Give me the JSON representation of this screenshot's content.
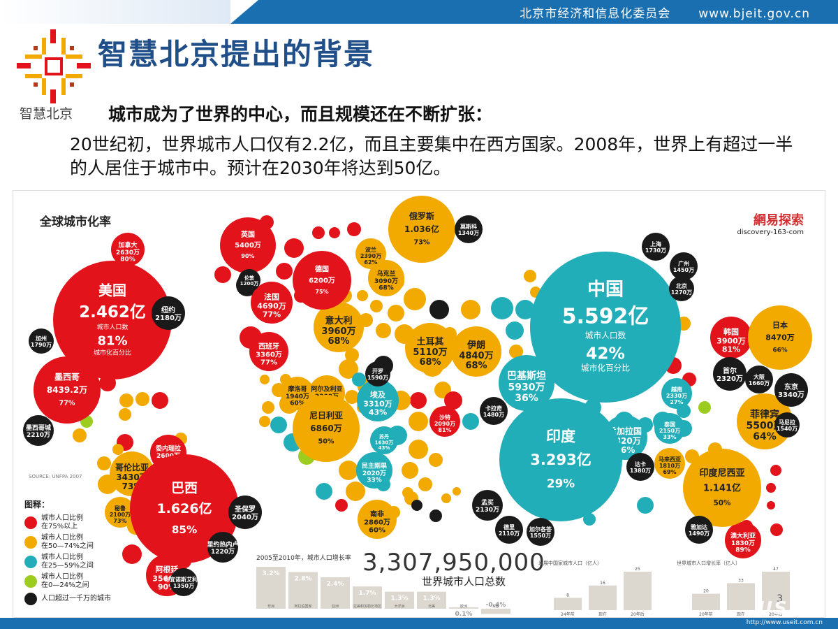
{
  "header": {
    "org_name": "北京市经济和信息化委员会",
    "website": "www.bjeit.gov.cn"
  },
  "logo": {
    "text": "智慧北京"
  },
  "title": "智慧北京提出的背景",
  "subtitle": "城市成为了世界的中心，而且规模还在不断扩张：",
  "body": "20世纪初，世界城市人口仅有2.2亿，而且主要集中在西方国家。2008年，世界上有超过一半的人居住于城市中。预计在2030年将达到50亿。",
  "infographic": {
    "title": "全球城市化率",
    "brand": "網易探索",
    "brand_url": "discovery-163-com",
    "source": "SOURCE: UNFPA 2007",
    "colors": {
      "red": "#e2131a",
      "orange": "#f2a900",
      "teal": "#21aeb8",
      "green": "#9ccc1f",
      "black": "#1a1a1a"
    },
    "big_bubbles": [
      {
        "id": "usa",
        "name": "美国",
        "pop": "2.462亿",
        "pop_label": "城市人口数",
        "rate": "81%",
        "rate_label": "城市化百分比",
        "color": "red"
      },
      {
        "id": "china",
        "name": "中国",
        "pop": "5.592亿",
        "pop_label": "城市人口数",
        "rate": "42%",
        "rate_label": "城市化百分比",
        "color": "teal"
      },
      {
        "id": "india",
        "name": "印度",
        "pop": "3.293亿",
        "rate": "29%",
        "color": "teal"
      },
      {
        "id": "brazil",
        "name": "巴西",
        "pop": "1.626亿",
        "rate": "85%",
        "color": "red"
      },
      {
        "id": "russia",
        "name": "俄罗斯",
        "pop": "1.036亿",
        "rate": "73%",
        "color": "orange"
      },
      {
        "id": "mexico",
        "name": "墨西哥",
        "pop": "8439.2万",
        "rate": "77%",
        "color": "red"
      },
      {
        "id": "indonesia",
        "name": "印度尼西亚",
        "pop": "1.141亿",
        "rate": "50%",
        "color": "orange"
      },
      {
        "id": "japan",
        "name": "日本",
        "pop": "8470万",
        "rate": "66%",
        "color": "orange"
      },
      {
        "id": "nigeria",
        "name": "尼日利亚",
        "pop": "6860万",
        "rate": "50%",
        "color": "orange"
      },
      {
        "id": "germany",
        "name": "德国",
        "pop": "6200万",
        "rate": "75%",
        "color": "red"
      },
      {
        "id": "uk",
        "name": "英国",
        "pop": "5400万",
        "rate": "90%",
        "color": "red"
      }
    ],
    "mid_bubbles": [
      {
        "name": "法国",
        "pop": "4690万",
        "rate": "77%",
        "color": "red"
      },
      {
        "name": "意大利",
        "pop": "3960万",
        "rate": "68%",
        "color": "orange"
      },
      {
        "name": "西班牙",
        "pop": "3360万",
        "rate": "77%",
        "color": "red"
      },
      {
        "name": "土耳其",
        "pop": "5110万",
        "rate": "68%",
        "color": "orange"
      },
      {
        "name": "伊朗",
        "pop": "4840万",
        "rate": "68%",
        "color": "orange"
      },
      {
        "name": "巴基斯坦",
        "pop": "5930万",
        "rate": "36%",
        "color": "teal"
      },
      {
        "name": "乌克兰",
        "pop": "3090万",
        "rate": "68%",
        "color": "orange"
      },
      {
        "name": "波兰",
        "pop": "2390万",
        "rate": "62%",
        "color": "orange"
      },
      {
        "name": "埃及",
        "pop": "3310万",
        "rate": "43%",
        "color": "teal"
      },
      {
        "name": "南非",
        "pop": "2860万",
        "rate": "60%",
        "color": "orange"
      },
      {
        "name": "阿根廷",
        "pop": "3560万",
        "rate": "90%",
        "color": "red"
      },
      {
        "name": "哥伦比亚",
        "pop": "3430万",
        "rate": "73%",
        "color": "orange"
      },
      {
        "name": "委内瑞拉",
        "pop": "2600万",
        "rate": "94%",
        "color": "red"
      },
      {
        "name": "秘鲁",
        "pop": "2100万",
        "rate": "73%",
        "color": "orange"
      },
      {
        "name": "菲律宾",
        "pop": "5500万",
        "rate": "64%",
        "color": "orange"
      },
      {
        "name": "韩国",
        "pop": "3900万",
        "rate": "81%",
        "color": "red"
      },
      {
        "name": "孟加拉国",
        "pop": "3820万",
        "rate": "26%",
        "color": "teal"
      },
      {
        "name": "越南",
        "pop": "2330万",
        "rate": "27%",
        "color": "teal"
      },
      {
        "name": "泰国",
        "pop": "2150万",
        "rate": "33%",
        "color": "teal"
      },
      {
        "name": "马来西亚",
        "pop": "1810万",
        "rate": "69%",
        "color": "orange"
      },
      {
        "name": "澳大利亚",
        "pop": "1830万",
        "rate": "89%",
        "color": "red"
      },
      {
        "name": "加拿大",
        "pop": "2630万",
        "rate": "80%",
        "color": "red"
      },
      {
        "name": "摩洛哥",
        "pop": "1940万",
        "rate": "60%",
        "color": "orange"
      },
      {
        "name": "阿尔及利亚",
        "pop": "2200万",
        "rate": "65%",
        "color": "orange"
      },
      {
        "name": "民主刚果",
        "pop": "2020万",
        "rate": "33%",
        "color": "teal"
      },
      {
        "name": "苏丹",
        "pop": "1630万",
        "rate": "43%",
        "color": "teal"
      },
      {
        "name": "沙特",
        "pop": "2090万",
        "rate": "81%",
        "color": "red"
      }
    ],
    "city_bubbles": [
      {
        "name": "纽约",
        "pop": "2180万"
      },
      {
        "name": "加州",
        "pop": "1790万"
      },
      {
        "name": "墨西哥城",
        "pop": "2210万"
      },
      {
        "name": "圣保罗",
        "pop": "2040万"
      },
      {
        "name": "里约热内卢",
        "pop": "1220万"
      },
      {
        "name": "布宜诺斯艾利斯",
        "pop": "1350万"
      },
      {
        "name": "上海",
        "pop": "1730万"
      },
      {
        "name": "广州",
        "pop": "1450万"
      },
      {
        "name": "北京",
        "pop": "1270万"
      },
      {
        "name": "首尔",
        "pop": "2320万"
      },
      {
        "name": "大阪",
        "pop": "1660万"
      },
      {
        "name": "东京",
        "pop": "3340万"
      },
      {
        "name": "马尼拉",
        "pop": "1540万"
      },
      {
        "name": "雅加达",
        "pop": "1490万"
      },
      {
        "name": "达卡",
        "pop": "1380万"
      },
      {
        "name": "孟买",
        "pop": "2130万"
      },
      {
        "name": "德里",
        "pop": "2110万"
      },
      {
        "name": "加尔各答",
        "pop": "1550万"
      },
      {
        "name": "卡拉奇",
        "pop": "1480万"
      },
      {
        "name": "开罗",
        "pop": "1590万"
      },
      {
        "name": "莫斯科",
        "pop": "1340万"
      },
      {
        "name": "伦敦",
        "pop": "1200万"
      }
    ],
    "legend": {
      "title": "图释：",
      "items": [
        {
          "color": "red",
          "line1": "城市人口比例",
          "line2": "在75%以上"
        },
        {
          "color": "orange",
          "line1": "城市人口比例",
          "line2": "在50—74%之间"
        },
        {
          "color": "teal",
          "line1": "城市人口比例",
          "line2": "在25—59%之间"
        },
        {
          "color": "green",
          "line1": "城市人口比例",
          "line2": "在0—24%之间"
        },
        {
          "color": "black",
          "line1": "人口超过一千万的城市",
          "line2": ""
        }
      ]
    },
    "growth_chart": {
      "title": "2005至2010年，城市人口增长率",
      "bars": [
        {
          "label": "非洲",
          "value": 3.2,
          "text": "3.2%"
        },
        {
          "label": "阿拉伯国家",
          "value": 2.8,
          "text": "2.8%"
        },
        {
          "label": "亚洲",
          "value": 2.4,
          "text": "2.4%"
        },
        {
          "label": "拉美和加勒比地区",
          "value": 1.7,
          "text": "1.7%"
        },
        {
          "label": "大洋洲",
          "value": 1.3,
          "text": "1.3%"
        },
        {
          "label": "北美",
          "value": 1.3,
          "text": "1.3%"
        },
        {
          "label": "欧洲",
          "value": 0.1,
          "text": "0.1%"
        },
        {
          "label": "东欧",
          "value": -0.4,
          "text": "-0.4%"
        }
      ]
    },
    "total_number": "3,307,950,000",
    "total_label": "世界城市人口总数",
    "mini_chart_1": {
      "title": "发展中国家城市人口（亿人）",
      "bars": [
        {
          "label": "24年前",
          "value": 8
        },
        {
          "label": "现在",
          "value": 16
        },
        {
          "label": "20年后",
          "value": 25
        }
      ]
    },
    "mini_chart_2": {
      "title": "世界城市人口增长率（亿人）",
      "bars": [
        {
          "label": "20年前",
          "value": 20
        },
        {
          "label": "现在",
          "value": 33
        },
        {
          "label": "20年后",
          "value": 47
        }
      ]
    },
    "page_number": "3"
  },
  "watermark": "USEIT",
  "watermark_url": "http://www.useit.com.cn"
}
